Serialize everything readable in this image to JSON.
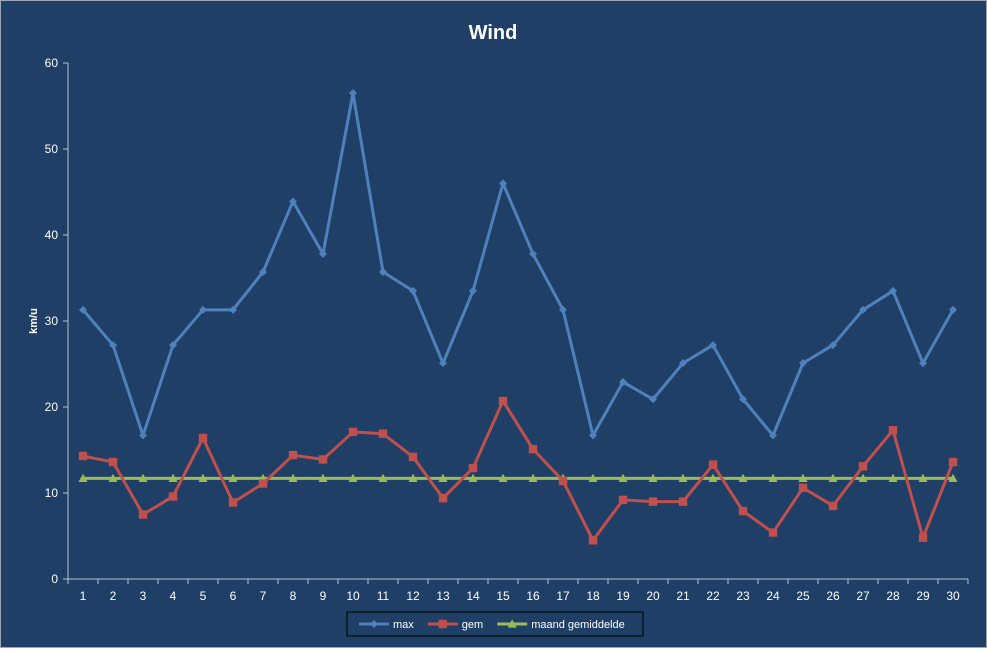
{
  "chart_data": {
    "type": "line",
    "title": "Wind",
    "xlabel": "",
    "ylabel": "km/u",
    "categories": [
      "1",
      "2",
      "3",
      "4",
      "5",
      "6",
      "7",
      "8",
      "9",
      "10",
      "11",
      "12",
      "13",
      "14",
      "15",
      "16",
      "17",
      "18",
      "19",
      "20",
      "21",
      "22",
      "23",
      "24",
      "25",
      "26",
      "27",
      "28",
      "29",
      "30"
    ],
    "ylim": [
      0,
      60
    ],
    "yticks": [
      0,
      10,
      20,
      30,
      40,
      50,
      60
    ],
    "grid": false,
    "legend_position": "bottom",
    "series": [
      {
        "name": "max",
        "color": "#4f81bd",
        "marker": "diamond",
        "values": [
          31.3,
          27.2,
          16.7,
          27.2,
          31.3,
          31.3,
          35.7,
          43.9,
          37.8,
          56.5,
          35.7,
          33.5,
          25.1,
          33.5,
          46.0,
          37.8,
          31.3,
          16.7,
          22.9,
          20.9,
          25.1,
          27.2,
          20.9,
          16.7,
          25.1,
          27.2,
          31.3,
          33.5,
          25.1,
          31.3
        ]
      },
      {
        "name": "gem",
        "color": "#c0504d",
        "marker": "square",
        "values": [
          14.3,
          13.6,
          7.5,
          9.6,
          16.4,
          8.9,
          11.1,
          14.4,
          13.9,
          17.1,
          16.9,
          14.2,
          9.4,
          12.9,
          20.7,
          15.1,
          11.4,
          4.5,
          9.2,
          9.0,
          9.0,
          13.3,
          7.9,
          5.4,
          10.6,
          8.5,
          13.1,
          17.3,
          4.8,
          13.6
        ]
      },
      {
        "name": "maand gemiddelde",
        "color": "#9bbb59",
        "marker": "triangle",
        "values": [
          11.7,
          11.7,
          11.7,
          11.7,
          11.7,
          11.7,
          11.7,
          11.7,
          11.7,
          11.7,
          11.7,
          11.7,
          11.7,
          11.7,
          11.7,
          11.7,
          11.7,
          11.7,
          11.7,
          11.7,
          11.7,
          11.7,
          11.7,
          11.7,
          11.7,
          11.7,
          11.7,
          11.7,
          11.7,
          11.7
        ]
      }
    ]
  }
}
